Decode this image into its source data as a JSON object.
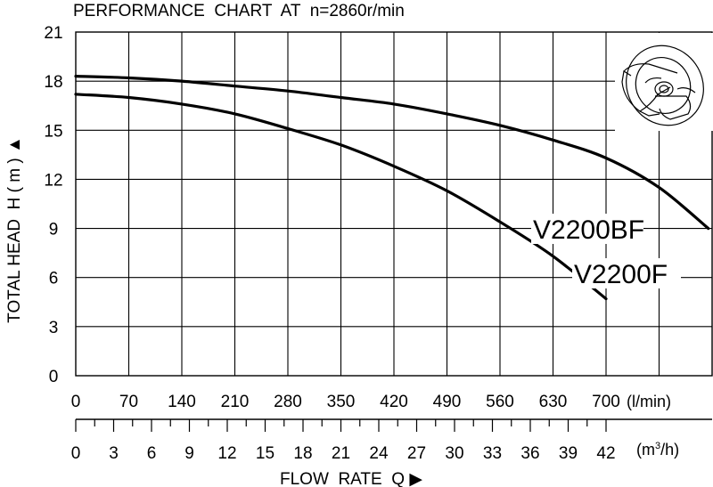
{
  "chart_data": {
    "type": "line",
    "title": "PERFORMANCE  CHART  AT  n=2860r/min",
    "ylabel": "TOTAL HEAD  H ( m ) ▲",
    "xlabel": "FLOW  RATE  Q ▶",
    "x_unit_primary": "(l/min)",
    "x_unit_secondary_base": "(m",
    "x_unit_secondary_sup": "3",
    "x_unit_secondary_tail": "/h)",
    "ylim": [
      0,
      21
    ],
    "xlim_lmin": [
      0,
      840
    ],
    "y_ticks": [
      "0",
      "3",
      "6",
      "9",
      "12",
      "15",
      "18",
      "21"
    ],
    "x_ticks_lmin": [
      "0",
      "70",
      "140",
      "210",
      "280",
      "350",
      "420",
      "490",
      "560",
      "630",
      "700"
    ],
    "x_ticks_m3h": [
      "0",
      "3",
      "6",
      "9",
      "12",
      "15",
      "18",
      "21",
      "24",
      "27",
      "30",
      "33",
      "36",
      "39",
      "42"
    ],
    "grid": true,
    "series": [
      {
        "name": "V2200BF",
        "x": [
          0,
          70,
          140,
          210,
          280,
          350,
          420,
          490,
          560,
          630,
          700,
          770,
          835
        ],
        "y": [
          18.3,
          18.2,
          18.0,
          17.7,
          17.4,
          17.0,
          16.6,
          16.0,
          15.3,
          14.4,
          13.3,
          11.5,
          9.0
        ]
      },
      {
        "name": "V2200F",
        "x": [
          0,
          70,
          140,
          210,
          280,
          350,
          420,
          490,
          560,
          630,
          700
        ],
        "y": [
          17.2,
          17.0,
          16.6,
          16.0,
          15.1,
          14.1,
          12.8,
          11.3,
          9.4,
          7.3,
          4.7
        ]
      }
    ]
  },
  "colors": {
    "line": "#000000",
    "grid": "#000000",
    "background": "#ffffff"
  }
}
